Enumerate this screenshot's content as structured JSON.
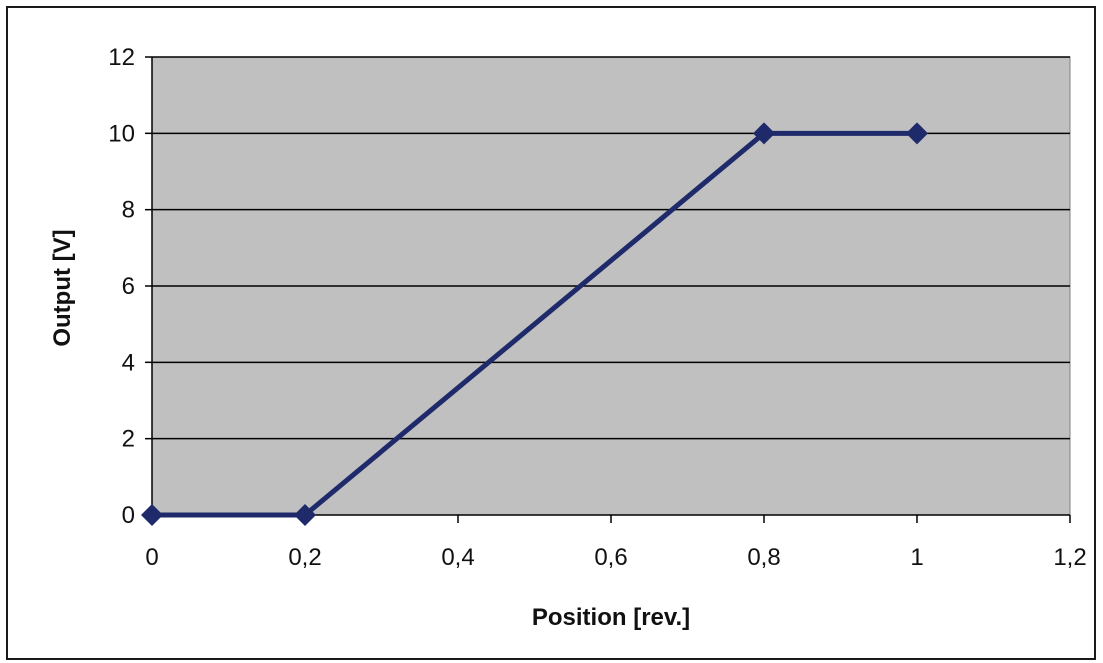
{
  "chart_data": {
    "type": "line",
    "title": "",
    "xlabel": "Position [rev.]",
    "ylabel": "Output [V]",
    "xlim": [
      0,
      1.2
    ],
    "ylim": [
      0,
      12
    ],
    "x_ticks": [
      0,
      0.2,
      0.4,
      0.6,
      0.8,
      1,
      1.2
    ],
    "x_tick_labels": [
      "0",
      "0,2",
      "0,4",
      "0,6",
      "0,8",
      "1",
      "1,2"
    ],
    "y_ticks": [
      0,
      2,
      4,
      6,
      8,
      10,
      12
    ],
    "y_tick_labels": [
      "0",
      "2",
      "4",
      "6",
      "8",
      "10",
      "12"
    ],
    "grid": true,
    "legend": "none",
    "series": [
      {
        "x": [
          0,
          0.2,
          0.8,
          1
        ],
        "y": [
          0,
          0,
          10,
          10
        ],
        "color": "#1f2a6b",
        "marker": "diamond"
      }
    ],
    "colors": {
      "plot_background": "#c0c0c0",
      "gridline": "#000000",
      "line": "#1f2a6b"
    }
  }
}
